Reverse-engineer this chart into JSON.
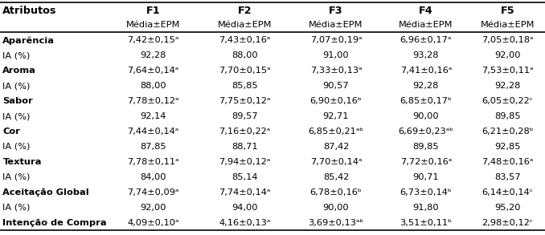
{
  "col_headers_row1": [
    "Atributos",
    "F1",
    "F2",
    "F3",
    "F4",
    "F5"
  ],
  "col_headers_row2": [
    "",
    "Média±EPM",
    "Média±EPM",
    "Média±EPM",
    "Média±EPM",
    "Média±EPM"
  ],
  "rows": [
    [
      "Aparência",
      "7,42±0,15ᵃ",
      "7,43±0,16ᵃ",
      "7,07±0,19ᵃ",
      "6,96±0,17ᵃ",
      "7,05±0,18ᵃ"
    ],
    [
      "IA (%)",
      "92,28",
      "88,00",
      "91,00",
      "93,28",
      "92,00"
    ],
    [
      "Aroma",
      "7,64±0,14ᵃ",
      "7,70±0,15ᵃ",
      "7,33±0,13ᵃ",
      "7,41±0,16ᵃ",
      "7,53±0,11ᵃ"
    ],
    [
      "IA (%)",
      "88,00",
      "85,85",
      "90,57",
      "92,28",
      "92,28"
    ],
    [
      "Sabor",
      "7,78±0,12ᵃ",
      "7,75±0,12ᵃ",
      "6,90±0,16ᵇ",
      "6,85±0,17ᵇ",
      "6,05±0,22ᶜ"
    ],
    [
      "IA (%)",
      "92,14",
      "89,57",
      "92,71",
      "90,00",
      "89,85"
    ],
    [
      "Cor",
      "7,44±0,14ᵃ",
      "7,16±0,22ᵃ",
      "6,85±0,21ᵃᵇ",
      "6,69±0,23ᵃᵇ",
      "6,21±0,28ᵇ"
    ],
    [
      "IA (%)",
      "87,85",
      "88,71",
      "87,42",
      "89,85",
      "92,85"
    ],
    [
      "Textura",
      "7,78±0,11ᵃ",
      "7,94±0,12ᵃ",
      "7,70±0,14ᵃ",
      "7,72±0,16ᵃ",
      "7,48±0,16ᵃ"
    ],
    [
      "IA (%)",
      "84,00",
      "85,14",
      "85,42",
      "90,71",
      "83,57"
    ],
    [
      "Aceitação Global",
      "7,74±0,09ᵃ",
      "7,74±0,14ᵃ",
      "6,78±0,16ᵇ",
      "6,73±0,14ᵇ",
      "6,14±0,14ᶜ"
    ],
    [
      "IA (%)",
      "92,00",
      "94,00",
      "90,00",
      "91,80",
      "95,20"
    ],
    [
      "Intenção de Compra",
      "4,09±0,10ᵃ",
      "4,16±0,13ᵃ",
      "3,69±0,13ᵃᵇ",
      "3,51±0,11ᵇ",
      "2,98±0,12ᶜ"
    ]
  ],
  "bg_color": "#ffffff",
  "text_color": "#000000",
  "header_line_color": "#000000",
  "font_size": 8.2,
  "header_font_size": 9.2
}
